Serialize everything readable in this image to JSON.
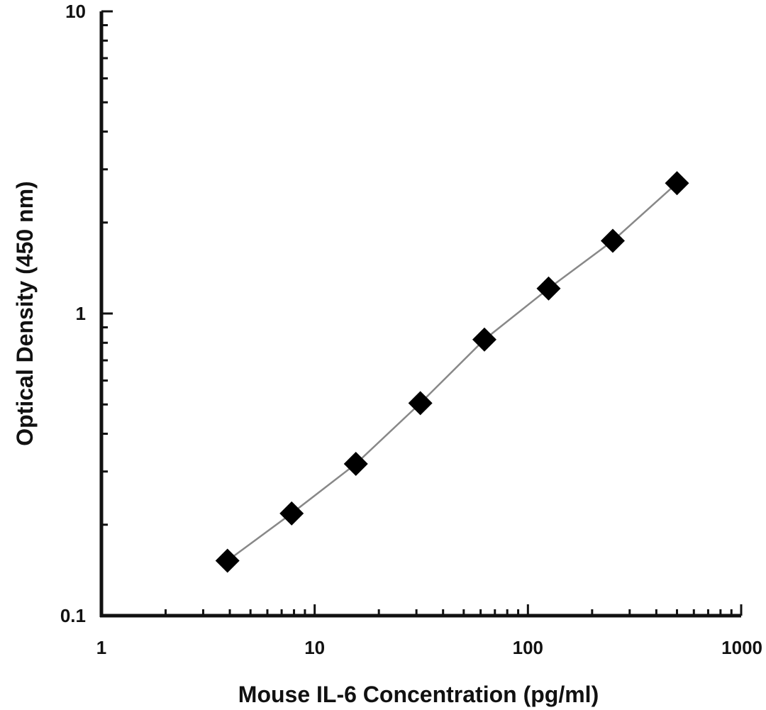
{
  "chart_data": {
    "type": "line",
    "xlabel": "Mouse IL-6 Concentration (pg/ml)",
    "ylabel": "Optical Density (450 nm)",
    "x_scale": "log",
    "y_scale": "log",
    "xlim": [
      1,
      1000
    ],
    "ylim": [
      0.1,
      10
    ],
    "x_ticks": [
      "1",
      "10",
      "100",
      "1000"
    ],
    "y_ticks": [
      "0.1",
      "1",
      "10"
    ],
    "grid": false,
    "legend": "none",
    "marker": "diamond",
    "marker_color": "#000000",
    "line_color": "#888888",
    "series": [
      {
        "x": [
          3.9,
          7.8,
          15.6,
          31.3,
          62.5,
          125,
          250,
          500
        ],
        "y": [
          0.152,
          0.218,
          0.318,
          0.505,
          0.82,
          1.21,
          1.74,
          2.7
        ]
      }
    ]
  }
}
